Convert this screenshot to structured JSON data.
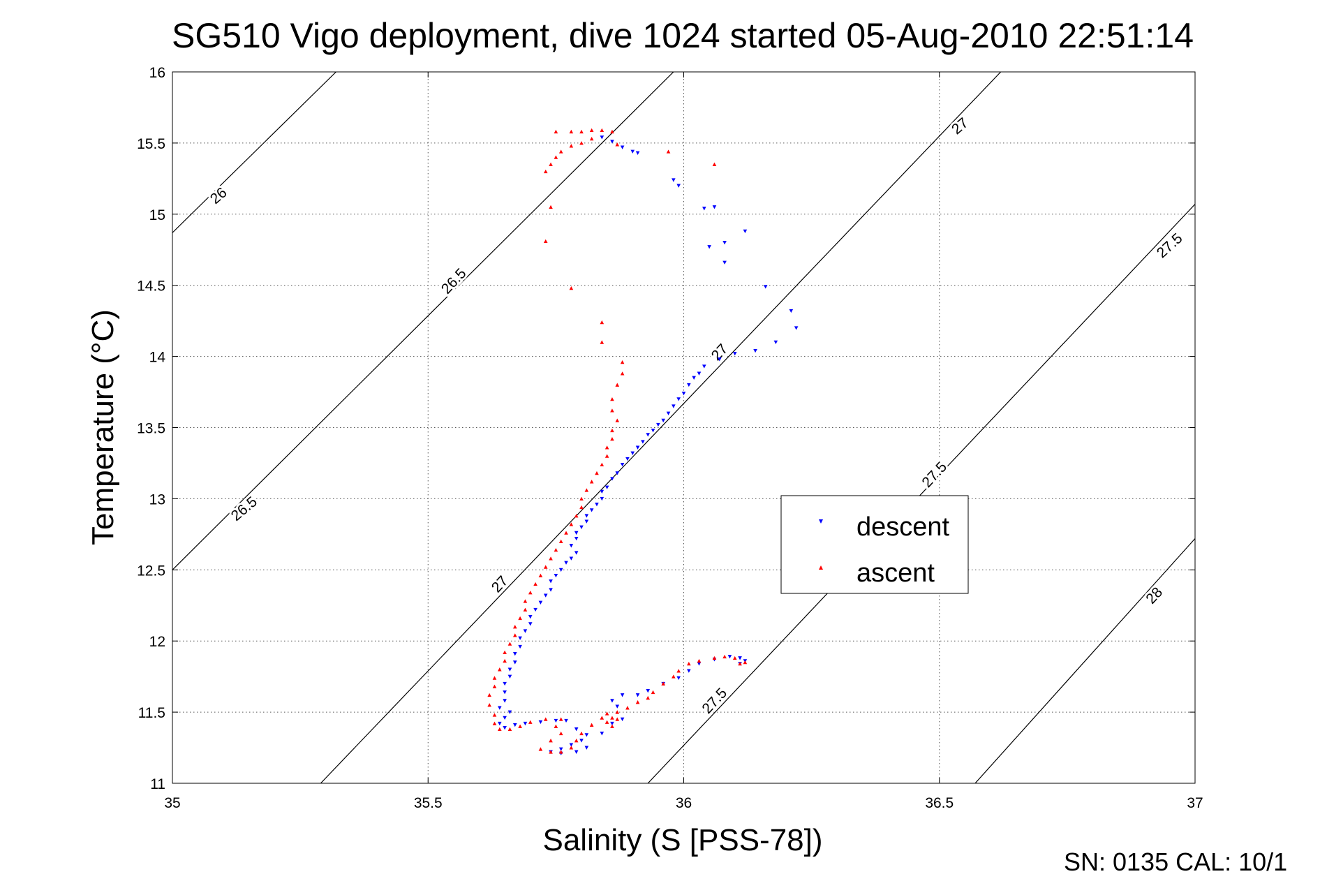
{
  "chart_data": {
    "type": "scatter",
    "title": "SG510 Vigo deployment, dive 1024 started 05-Aug-2010 22:51:14",
    "xlabel": "Salinity (S [PSS-78])",
    "ylabel": "Temperature (°C)",
    "xlim": [
      35,
      37
    ],
    "ylim": [
      11,
      16
    ],
    "x_ticks": [
      35,
      35.5,
      36,
      36.5,
      37
    ],
    "x_tick_labels": [
      "35",
      "35.5",
      "36",
      "36.5",
      "37"
    ],
    "y_ticks": [
      11,
      11.5,
      12,
      12.5,
      13,
      13.5,
      14,
      14.5,
      15,
      15.5,
      16
    ],
    "y_tick_labels": [
      "11",
      "11.5",
      "12",
      "12.5",
      "13",
      "13.5",
      "14",
      "14.5",
      "15",
      "15.5",
      "16"
    ],
    "grid": true,
    "grid_style": "dotted",
    "legend_position": "center-right",
    "footer": "SN: 0135  CAL: 10/1",
    "density_contours": [
      {
        "level": 26,
        "label": "26",
        "points": [
          [
            35.0,
            14.87
          ],
          [
            35.32,
            16.0
          ]
        ]
      },
      {
        "level": 26.5,
        "label": "26.5",
        "points": [
          [
            35.0,
            12.5
          ],
          [
            35.98,
            16.0
          ]
        ]
      },
      {
        "level": 27,
        "label": "27",
        "points": [
          [
            35.29,
            11.0
          ],
          [
            36.62,
            16.0
          ]
        ]
      },
      {
        "level": 27.5,
        "label": "27.5",
        "points": [
          [
            35.93,
            11.0
          ],
          [
            37.0,
            15.07
          ]
        ]
      },
      {
        "level": 28,
        "label": "28",
        "points": [
          [
            36.57,
            11.0
          ],
          [
            37.0,
            12.72
          ]
        ]
      }
    ],
    "contour_labels": [
      {
        "text": "26",
        "x": 35.09,
        "y": 15.13,
        "angle": -40
      },
      {
        "text": "26.5",
        "x": 35.55,
        "y": 14.53,
        "angle": -47
      },
      {
        "text": "26.5",
        "x": 35.14,
        "y": 12.93,
        "angle": -40
      },
      {
        "text": "27",
        "x": 36.54,
        "y": 15.62,
        "angle": -40
      },
      {
        "text": "27",
        "x": 36.07,
        "y": 14.03,
        "angle": -47
      },
      {
        "text": "27",
        "x": 35.64,
        "y": 12.4,
        "angle": -47
      },
      {
        "text": "27.5",
        "x": 36.95,
        "y": 14.78,
        "angle": -42
      },
      {
        "text": "27.5",
        "x": 36.49,
        "y": 13.17,
        "angle": -47
      },
      {
        "text": "27.5",
        "x": 36.06,
        "y": 11.58,
        "angle": -47
      },
      {
        "text": "28",
        "x": 36.92,
        "y": 12.32,
        "angle": -47
      }
    ],
    "series": [
      {
        "name": "descent",
        "color": "#0000ff",
        "marker": "triangle-down",
        "points": [
          [
            35.84,
            15.54
          ],
          [
            35.86,
            15.51
          ],
          [
            35.88,
            15.47
          ],
          [
            35.9,
            15.44
          ],
          [
            35.91,
            15.43
          ],
          [
            35.98,
            15.24
          ],
          [
            35.99,
            15.2
          ],
          [
            36.04,
            15.04
          ],
          [
            36.06,
            15.05
          ],
          [
            36.05,
            14.77
          ],
          [
            36.08,
            14.8
          ],
          [
            36.08,
            14.66
          ],
          [
            36.12,
            14.88
          ],
          [
            36.16,
            14.49
          ],
          [
            36.21,
            14.32
          ],
          [
            36.22,
            14.2
          ],
          [
            36.18,
            14.1
          ],
          [
            36.14,
            14.04
          ],
          [
            36.1,
            14.02
          ],
          [
            36.07,
            13.98
          ],
          [
            36.04,
            13.93
          ],
          [
            36.03,
            13.88
          ],
          [
            36.02,
            13.85
          ],
          [
            36.01,
            13.8
          ],
          [
            36.0,
            13.74
          ],
          [
            35.99,
            13.7
          ],
          [
            35.98,
            13.65
          ],
          [
            35.97,
            13.6
          ],
          [
            35.96,
            13.55
          ],
          [
            35.95,
            13.52
          ],
          [
            35.94,
            13.48
          ],
          [
            35.93,
            13.45
          ],
          [
            35.92,
            13.4
          ],
          [
            35.91,
            13.36
          ],
          [
            35.9,
            13.32
          ],
          [
            35.89,
            13.28
          ],
          [
            35.88,
            13.24
          ],
          [
            35.87,
            13.18
          ],
          [
            35.86,
            13.14
          ],
          [
            35.85,
            13.08
          ],
          [
            35.84,
            13.05
          ],
          [
            35.84,
            13.0
          ],
          [
            35.83,
            12.96
          ],
          [
            35.82,
            12.92
          ],
          [
            35.81,
            12.88
          ],
          [
            35.81,
            12.84
          ],
          [
            35.8,
            12.8
          ],
          [
            35.79,
            12.76
          ],
          [
            35.79,
            12.72
          ],
          [
            35.78,
            12.67
          ],
          [
            35.79,
            12.62
          ],
          [
            35.78,
            12.58
          ],
          [
            35.77,
            12.55
          ],
          [
            35.76,
            12.5
          ],
          [
            35.75,
            12.46
          ],
          [
            35.74,
            12.42
          ],
          [
            35.74,
            12.36
          ],
          [
            35.73,
            12.32
          ],
          [
            35.72,
            12.27
          ],
          [
            35.71,
            12.22
          ],
          [
            35.7,
            12.17
          ],
          [
            35.7,
            12.12
          ],
          [
            35.69,
            12.07
          ],
          [
            35.68,
            12.02
          ],
          [
            35.68,
            11.96
          ],
          [
            35.67,
            11.91
          ],
          [
            35.67,
            11.85
          ],
          [
            35.66,
            11.8
          ],
          [
            35.66,
            11.75
          ],
          [
            35.65,
            11.7
          ],
          [
            35.65,
            11.64
          ],
          [
            35.65,
            11.58
          ],
          [
            35.64,
            11.53
          ],
          [
            35.66,
            11.5
          ],
          [
            35.65,
            11.46
          ],
          [
            35.64,
            11.42
          ],
          [
            35.65,
            11.39
          ],
          [
            35.67,
            11.41
          ],
          [
            35.69,
            11.42
          ],
          [
            35.72,
            11.43
          ],
          [
            35.75,
            11.44
          ],
          [
            35.77,
            11.44
          ],
          [
            35.79,
            11.38
          ],
          [
            35.81,
            11.34
          ],
          [
            35.8,
            11.3
          ],
          [
            35.78,
            11.27
          ],
          [
            35.76,
            11.24
          ],
          [
            35.74,
            11.22
          ],
          [
            35.76,
            11.21
          ],
          [
            35.79,
            11.22
          ],
          [
            35.81,
            11.25
          ],
          [
            35.84,
            11.35
          ],
          [
            35.86,
            11.42
          ],
          [
            35.88,
            11.45
          ],
          [
            35.87,
            11.54
          ],
          [
            35.86,
            11.58
          ],
          [
            35.88,
            11.62
          ],
          [
            35.91,
            11.62
          ],
          [
            35.93,
            11.65
          ],
          [
            35.96,
            11.7
          ],
          [
            35.99,
            11.74
          ],
          [
            36.01,
            11.79
          ],
          [
            36.03,
            11.84
          ],
          [
            36.06,
            11.87
          ],
          [
            36.09,
            11.89
          ],
          [
            36.11,
            11.88
          ],
          [
            36.12,
            11.86
          ],
          [
            36.11,
            11.84
          ]
        ]
      },
      {
        "name": "ascent",
        "color": "#ff0000",
        "marker": "triangle-up",
        "points": [
          [
            36.11,
            11.84
          ],
          [
            36.12,
            11.85
          ],
          [
            36.1,
            11.88
          ],
          [
            36.08,
            11.89
          ],
          [
            36.06,
            11.88
          ],
          [
            36.03,
            11.86
          ],
          [
            36.01,
            11.84
          ],
          [
            35.99,
            11.79
          ],
          [
            35.98,
            11.75
          ],
          [
            35.96,
            11.7
          ],
          [
            35.94,
            11.64
          ],
          [
            35.93,
            11.6
          ],
          [
            35.91,
            11.57
          ],
          [
            35.89,
            11.53
          ],
          [
            35.87,
            11.5
          ],
          [
            35.86,
            11.46
          ],
          [
            35.85,
            11.43
          ],
          [
            35.86,
            11.4
          ],
          [
            35.87,
            11.45
          ],
          [
            35.85,
            11.49
          ],
          [
            35.84,
            11.46
          ],
          [
            35.82,
            11.41
          ],
          [
            35.8,
            11.35
          ],
          [
            35.79,
            11.3
          ],
          [
            35.78,
            11.25
          ],
          [
            35.76,
            11.22
          ],
          [
            35.74,
            11.22
          ],
          [
            35.72,
            11.24
          ],
          [
            35.74,
            11.3
          ],
          [
            35.76,
            11.35
          ],
          [
            35.75,
            11.4
          ],
          [
            35.76,
            11.45
          ],
          [
            35.73,
            11.45
          ],
          [
            35.7,
            11.43
          ],
          [
            35.68,
            11.4
          ],
          [
            35.66,
            11.38
          ],
          [
            35.64,
            11.38
          ],
          [
            35.63,
            11.42
          ],
          [
            35.63,
            11.48
          ],
          [
            35.62,
            11.55
          ],
          [
            35.62,
            11.62
          ],
          [
            35.63,
            11.68
          ],
          [
            35.63,
            11.74
          ],
          [
            35.64,
            11.8
          ],
          [
            35.65,
            11.86
          ],
          [
            35.65,
            11.92
          ],
          [
            35.66,
            11.98
          ],
          [
            35.67,
            12.04
          ],
          [
            35.67,
            12.1
          ],
          [
            35.68,
            12.16
          ],
          [
            35.69,
            12.22
          ],
          [
            35.69,
            12.28
          ],
          [
            35.7,
            12.34
          ],
          [
            35.71,
            12.4
          ],
          [
            35.72,
            12.46
          ],
          [
            35.73,
            12.52
          ],
          [
            35.74,
            12.58
          ],
          [
            35.75,
            12.64
          ],
          [
            35.76,
            12.7
          ],
          [
            35.77,
            12.76
          ],
          [
            35.78,
            12.82
          ],
          [
            35.79,
            12.88
          ],
          [
            35.8,
            12.94
          ],
          [
            35.8,
            13.0
          ],
          [
            35.81,
            13.06
          ],
          [
            35.82,
            13.12
          ],
          [
            35.83,
            13.18
          ],
          [
            35.84,
            13.24
          ],
          [
            35.85,
            13.3
          ],
          [
            35.85,
            13.36
          ],
          [
            35.86,
            13.42
          ],
          [
            35.86,
            13.48
          ],
          [
            35.87,
            13.55
          ],
          [
            35.86,
            13.62
          ],
          [
            35.86,
            13.7
          ],
          [
            35.87,
            13.8
          ],
          [
            35.88,
            13.88
          ],
          [
            35.88,
            13.96
          ],
          [
            35.84,
            14.1
          ],
          [
            35.84,
            14.24
          ],
          [
            35.78,
            14.48
          ],
          [
            35.73,
            14.81
          ],
          [
            35.74,
            15.05
          ],
          [
            35.73,
            15.3
          ],
          [
            35.74,
            15.35
          ],
          [
            35.75,
            15.4
          ],
          [
            35.76,
            15.44
          ],
          [
            35.78,
            15.48
          ],
          [
            35.8,
            15.5
          ],
          [
            35.82,
            15.53
          ],
          [
            35.75,
            15.58
          ],
          [
            35.78,
            15.58
          ],
          [
            35.8,
            15.58
          ],
          [
            35.82,
            15.59
          ],
          [
            35.84,
            15.59
          ],
          [
            35.86,
            15.58
          ],
          [
            35.87,
            15.49
          ],
          [
            35.97,
            15.44
          ],
          [
            36.06,
            15.35
          ]
        ]
      }
    ]
  }
}
